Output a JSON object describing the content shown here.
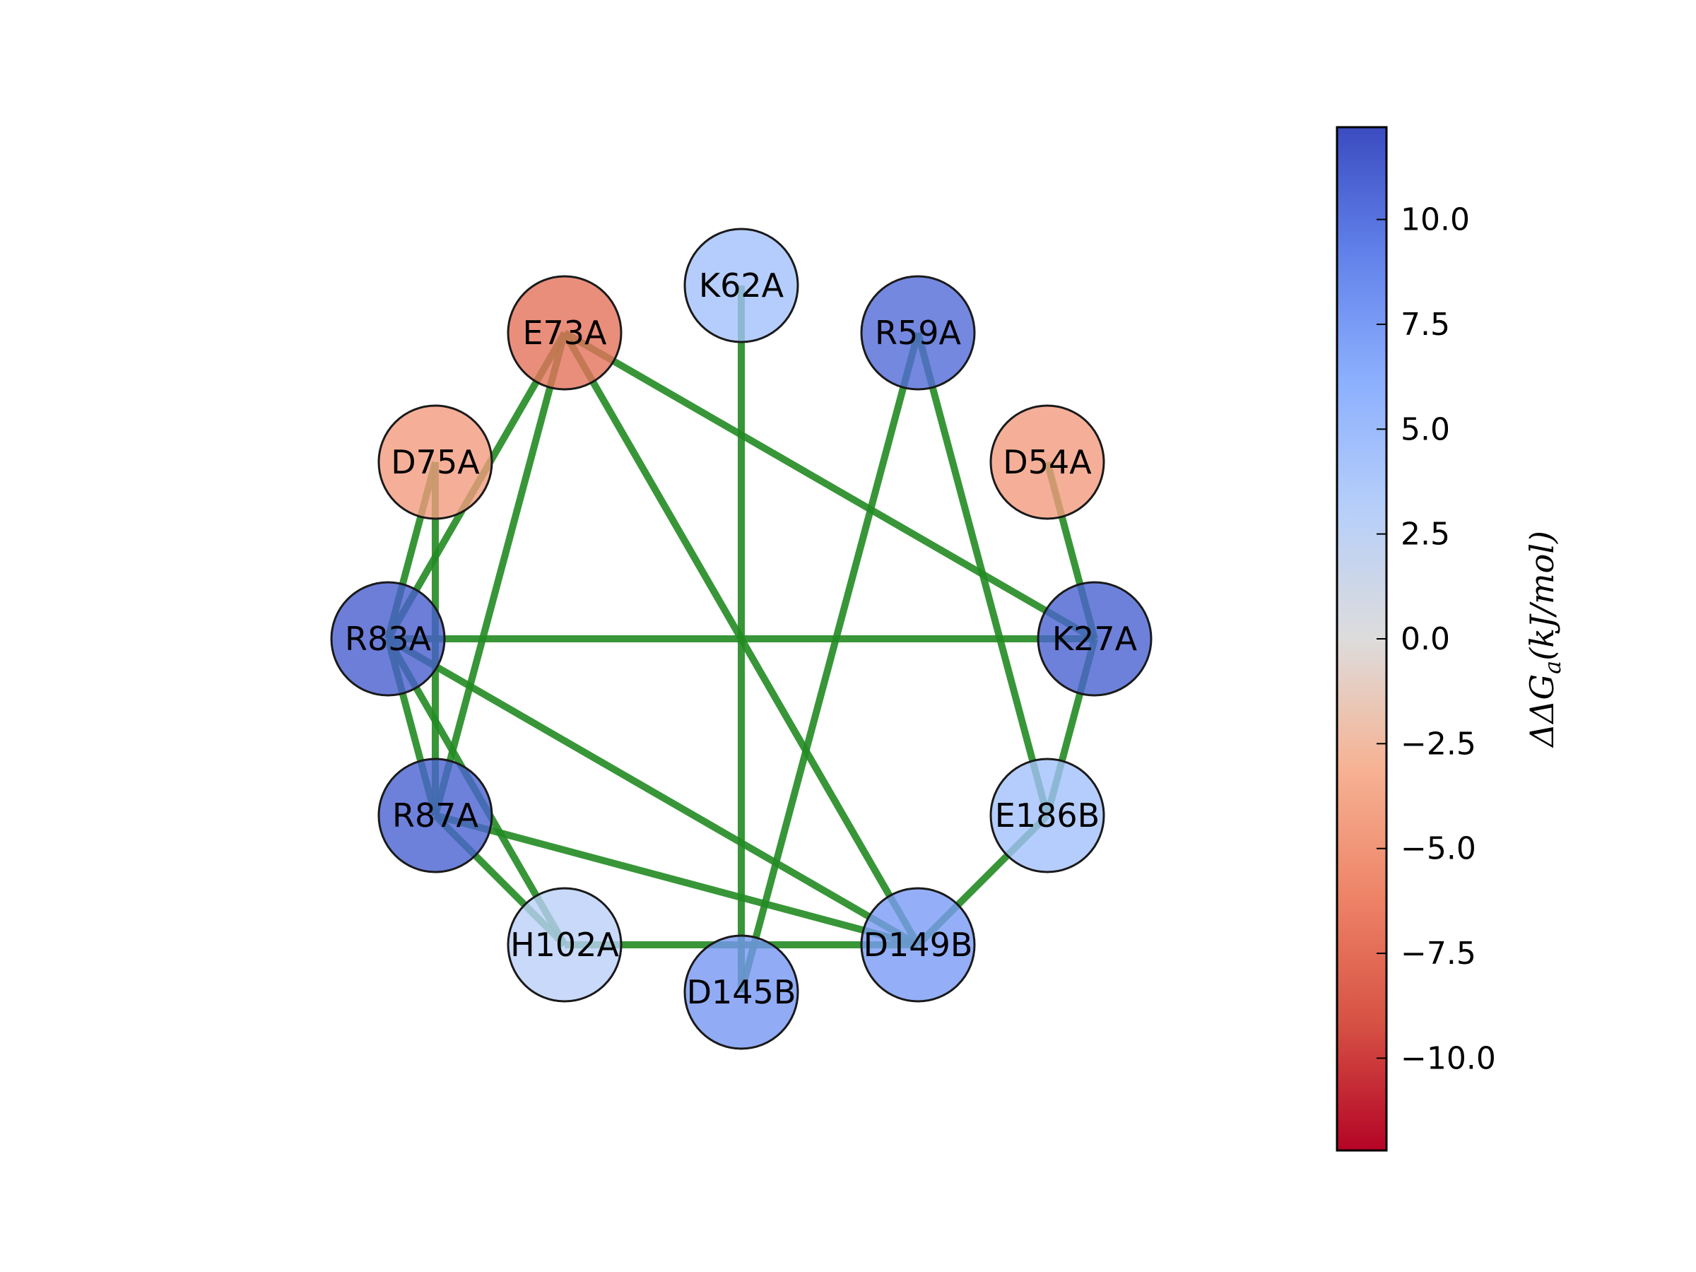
{
  "figure": {
    "type": "network",
    "colorbar": {
      "label": "ΔΔG_a(kJ/mol)",
      "label_parts": {
        "main": "ΔΔG",
        "sub": "a",
        "unit": "(kJ/mol)"
      },
      "range": [
        -12.2,
        12.2
      ],
      "ticks": [
        {
          "value": 10.0,
          "label": "10.0"
        },
        {
          "value": 7.5,
          "label": "7.5"
        },
        {
          "value": 5.0,
          "label": "5.0"
        },
        {
          "value": 2.5,
          "label": "2.5"
        },
        {
          "value": 0.0,
          "label": "0.0"
        },
        {
          "value": -2.5,
          "label": "−2.5"
        },
        {
          "value": -5.0,
          "label": "−5.0"
        },
        {
          "value": -7.5,
          "label": "−7.5"
        },
        {
          "value": -10.0,
          "label": "−10.0"
        }
      ]
    },
    "edge_color": "#228B22",
    "nodes": [
      {
        "id": "K62A",
        "label": "K62A",
        "value": 4.5
      },
      {
        "id": "R59A",
        "label": "R59A",
        "value": 10.5
      },
      {
        "id": "D54A",
        "label": "D54A",
        "value": -4.6
      },
      {
        "id": "K27A",
        "label": "K27A",
        "value": 11.0
      },
      {
        "id": "E186B",
        "label": "E186B",
        "value": 4.5
      },
      {
        "id": "D149B",
        "label": "D149B",
        "value": 7.5
      },
      {
        "id": "D145B",
        "label": "D145B",
        "value": 7.8
      },
      {
        "id": "H102A",
        "label": "H102A",
        "value": 2.8
      },
      {
        "id": "R87A",
        "label": "R87A",
        "value": 11.0
      },
      {
        "id": "R83A",
        "label": "R83A",
        "value": 11.2
      },
      {
        "id": "D75A",
        "label": "D75A",
        "value": -4.6
      },
      {
        "id": "E73A",
        "label": "E73A",
        "value": -7.2
      }
    ],
    "edges": [
      [
        "K62A",
        "D145B"
      ],
      [
        "E73A",
        "K27A"
      ],
      [
        "E73A",
        "D149B"
      ],
      [
        "E73A",
        "R83A"
      ],
      [
        "E73A",
        "R87A"
      ],
      [
        "R59A",
        "D145B"
      ],
      [
        "R59A",
        "E186B"
      ],
      [
        "D54A",
        "K27A"
      ],
      [
        "D75A",
        "R83A"
      ],
      [
        "D75A",
        "R87A"
      ],
      [
        "R83A",
        "K27A"
      ],
      [
        "R83A",
        "R87A"
      ],
      [
        "R83A",
        "H102A"
      ],
      [
        "R83A",
        "D149B"
      ],
      [
        "R87A",
        "H102A"
      ],
      [
        "R87A",
        "D149B"
      ],
      [
        "H102A",
        "D149B"
      ],
      [
        "K27A",
        "E186B"
      ],
      [
        "E186B",
        "D149B"
      ]
    ]
  }
}
